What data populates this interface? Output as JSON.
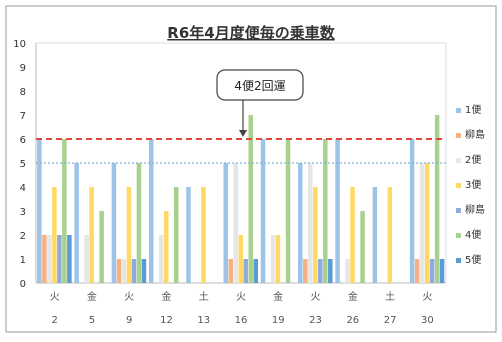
{
  "chart_data": {
    "type": "bar",
    "title": "R6年4月度便毎の乗車数",
    "categories": [
      "2",
      "5",
      "9",
      "12",
      "13",
      "16",
      "19",
      "23",
      "26",
      "27",
      "30"
    ],
    "weekdays": [
      "火",
      "金",
      "火",
      "金",
      "土",
      "火",
      "金",
      "火",
      "金",
      "土",
      "火"
    ],
    "ylim": [
      0,
      10
    ],
    "yticks": [
      0,
      1,
      2,
      3,
      4,
      5,
      6,
      7,
      8,
      9,
      10
    ],
    "grid": false,
    "legend_position": "right",
    "reference_lines": [
      {
        "value": 6,
        "color": "#e0463a",
        "style": "dashed"
      },
      {
        "value": 5,
        "color": "#7fb3d5",
        "style": "dotted"
      }
    ],
    "annotation": {
      "text": "4便2回運",
      "category": "16"
    },
    "series": [
      {
        "name": "1便",
        "color": "#9dc3e6",
        "values": [
          6,
          5,
          5,
          6,
          4,
          5,
          6,
          5,
          6,
          4,
          6
        ]
      },
      {
        "name": "柳島",
        "color": "#f4b183",
        "values": [
          2,
          0,
          1,
          0,
          0,
          1,
          0,
          1,
          0,
          0,
          1
        ]
      },
      {
        "name": "2便",
        "color": "#e7e6e6",
        "values": [
          2,
          2,
          1,
          2,
          0,
          5,
          2,
          5,
          1,
          0,
          5
        ]
      },
      {
        "name": "3便",
        "color": "#ffd966",
        "values": [
          4,
          4,
          4,
          3,
          4,
          2,
          2,
          4,
          4,
          4,
          5
        ]
      },
      {
        "name": "柳島",
        "color": "#8faadc",
        "values": [
          2,
          0,
          1,
          0,
          0,
          1,
          0,
          1,
          0,
          0,
          1
        ]
      },
      {
        "name": "4便",
        "color": "#a9d18e",
        "values": [
          6,
          3,
          5,
          4,
          0,
          7,
          6,
          6,
          3,
          0,
          7
        ]
      },
      {
        "name": "5便",
        "color": "#5b9bd5",
        "values": [
          2,
          0,
          1,
          0,
          0,
          1,
          0,
          1,
          0,
          0,
          1
        ]
      }
    ]
  }
}
